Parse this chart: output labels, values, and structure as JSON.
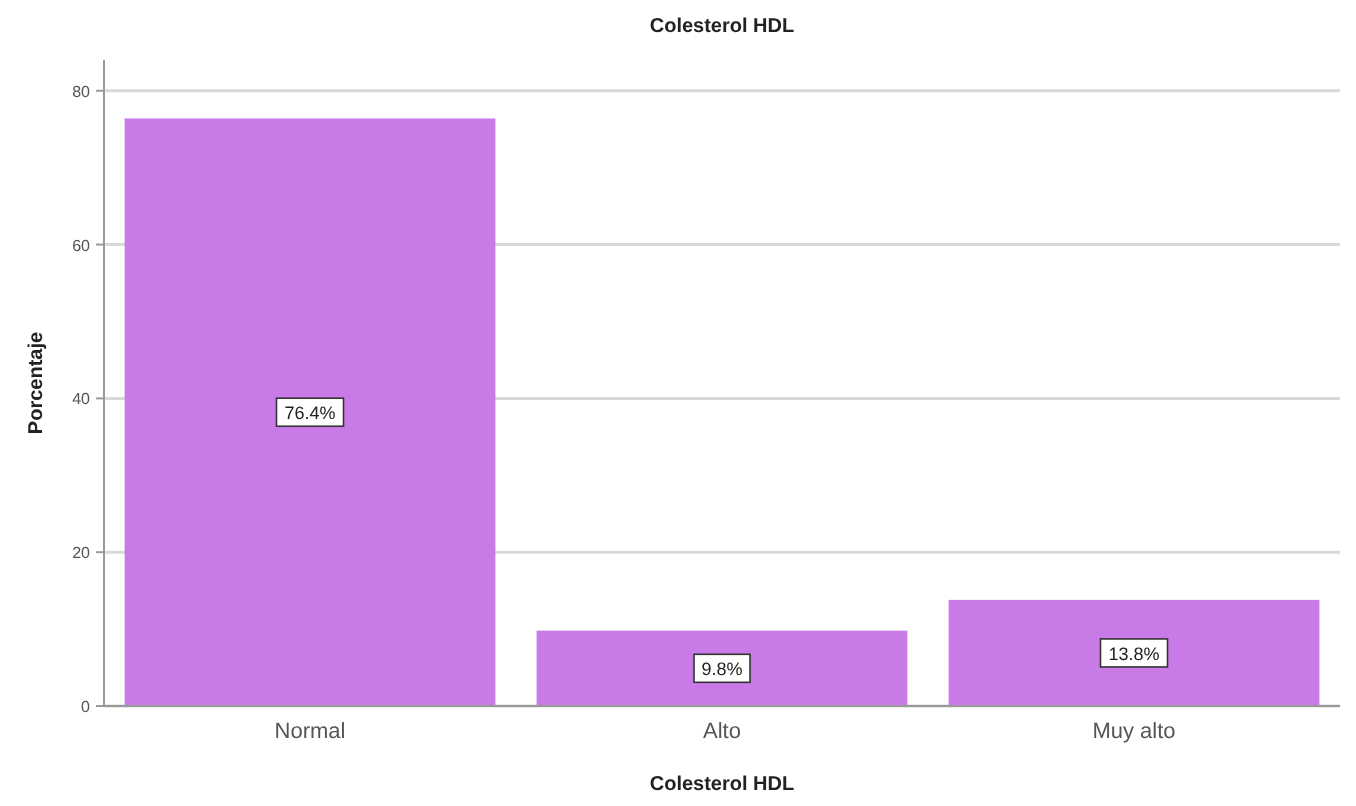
{
  "chart_data": {
    "type": "bar",
    "title": "Colesterol HDL",
    "xlabel": "Colesterol HDL",
    "ylabel": "Porcentaje",
    "categories": [
      "Normal",
      "Alto",
      "Muy alto"
    ],
    "values": [
      76.4,
      9.8,
      13.8
    ],
    "value_labels": [
      "76.4%",
      "9.8%",
      "13.8%"
    ],
    "color": "#c87be6",
    "ylim": [
      0,
      84
    ],
    "yticks": [
      0,
      20,
      40,
      60,
      80
    ],
    "grid": "y"
  }
}
